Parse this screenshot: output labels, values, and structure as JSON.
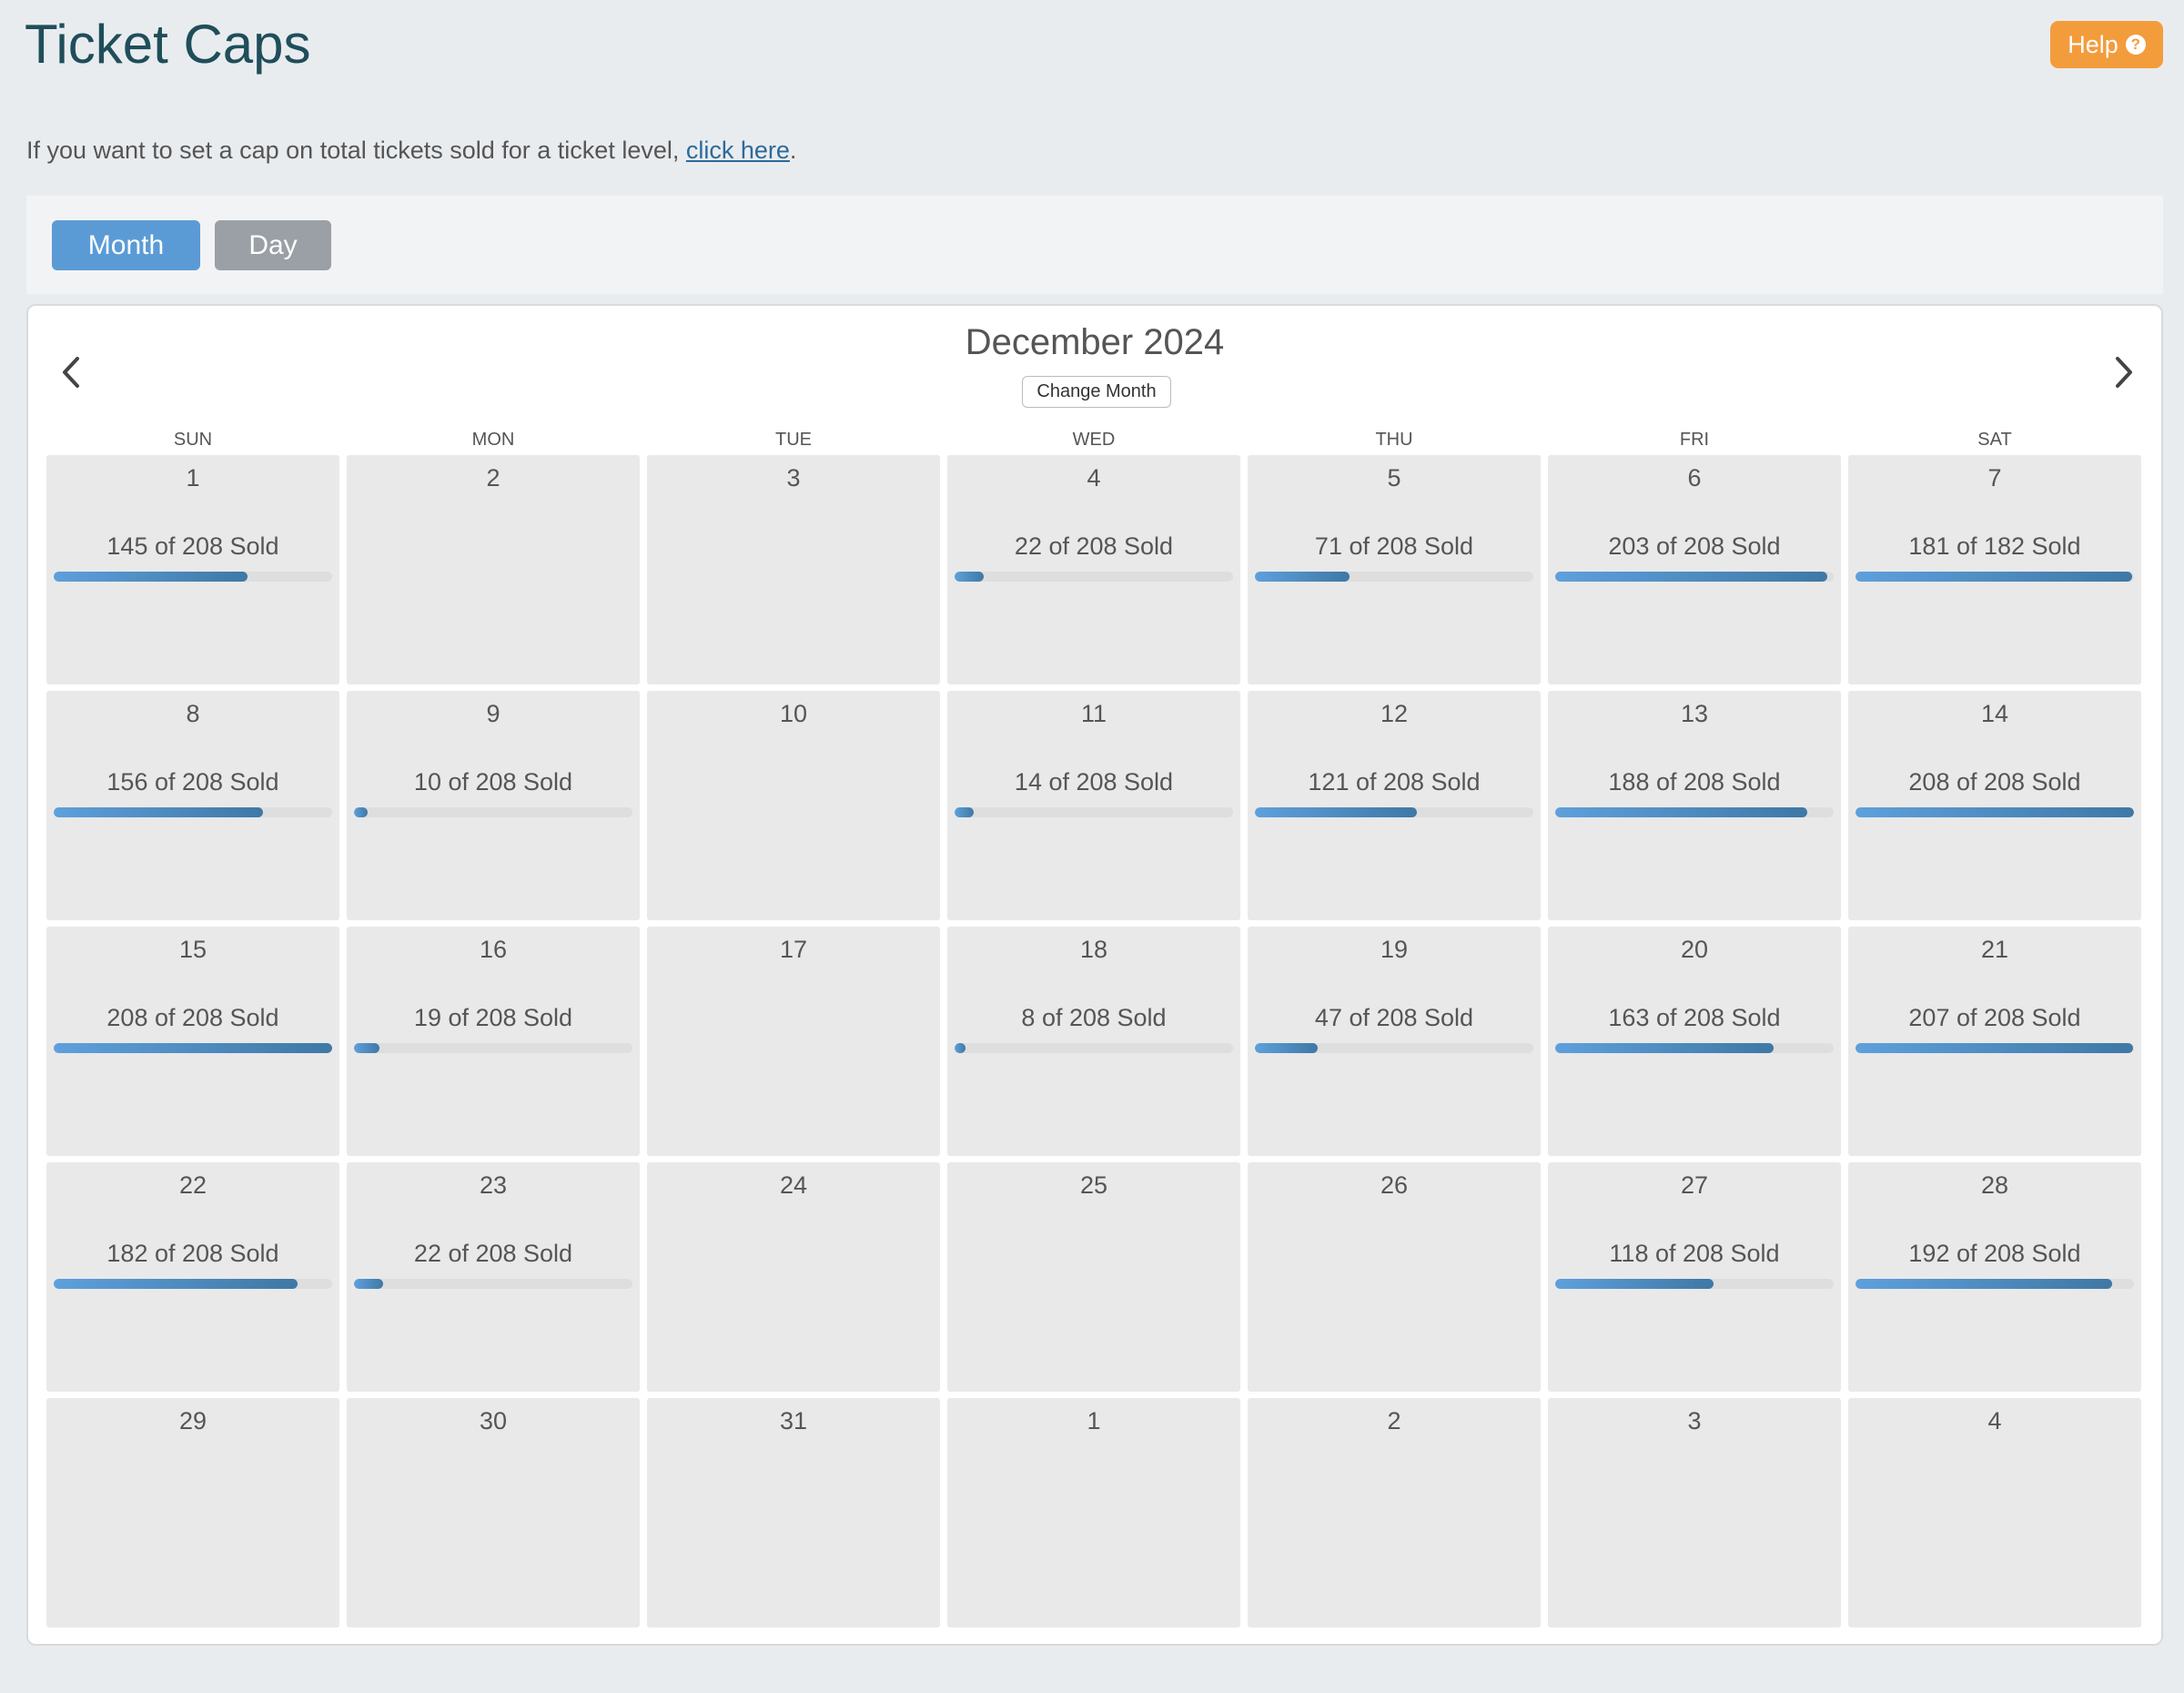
{
  "header": {
    "title": "Ticket Caps",
    "help_label": "Help",
    "help_icon": "question-circle-icon"
  },
  "intro": {
    "text": "If you want to set a cap on total tickets sold for a ticket level,",
    "link_label": "click here",
    "suffix": "."
  },
  "view_toggle": {
    "month_label": "Month",
    "day_label": "Day",
    "active": "Month",
    "colors": {
      "active": "#5b9bd5",
      "inactive": "#9aa0a6"
    }
  },
  "calendar": {
    "month_title": "December 2024",
    "change_month_label": "Change Month",
    "weekdays": [
      "SUN",
      "MON",
      "TUE",
      "WED",
      "THU",
      "FRI",
      "SAT"
    ],
    "days": [
      {
        "day": "1",
        "sold": 145,
        "cap": 208,
        "label": "145 of 208 Sold"
      },
      {
        "day": "2"
      },
      {
        "day": "3"
      },
      {
        "day": "4",
        "sold": 22,
        "cap": 208,
        "label": "22 of 208 Sold"
      },
      {
        "day": "5",
        "sold": 71,
        "cap": 208,
        "label": "71 of 208 Sold"
      },
      {
        "day": "6",
        "sold": 203,
        "cap": 208,
        "label": "203 of 208 Sold"
      },
      {
        "day": "7",
        "sold": 181,
        "cap": 182,
        "label": "181 of 182 Sold"
      },
      {
        "day": "8",
        "sold": 156,
        "cap": 208,
        "label": "156 of 208 Sold"
      },
      {
        "day": "9",
        "sold": 10,
        "cap": 208,
        "label": "10 of 208 Sold"
      },
      {
        "day": "10"
      },
      {
        "day": "11",
        "sold": 14,
        "cap": 208,
        "label": "14 of 208 Sold"
      },
      {
        "day": "12",
        "sold": 121,
        "cap": 208,
        "label": "121 of 208 Sold"
      },
      {
        "day": "13",
        "sold": 188,
        "cap": 208,
        "label": "188 of 208 Sold"
      },
      {
        "day": "14",
        "sold": 208,
        "cap": 208,
        "label": "208 of 208 Sold"
      },
      {
        "day": "15",
        "sold": 208,
        "cap": 208,
        "label": "208 of 208 Sold"
      },
      {
        "day": "16",
        "sold": 19,
        "cap": 208,
        "label": "19 of 208 Sold"
      },
      {
        "day": "17"
      },
      {
        "day": "18",
        "sold": 8,
        "cap": 208,
        "label": "8 of 208 Sold"
      },
      {
        "day": "19",
        "sold": 47,
        "cap": 208,
        "label": "47 of 208 Sold"
      },
      {
        "day": "20",
        "sold": 163,
        "cap": 208,
        "label": "163 of 208 Sold"
      },
      {
        "day": "21",
        "sold": 207,
        "cap": 208,
        "label": "207 of 208 Sold"
      },
      {
        "day": "22",
        "sold": 182,
        "cap": 208,
        "label": "182 of 208 Sold"
      },
      {
        "day": "23",
        "sold": 22,
        "cap": 208,
        "label": "22 of 208 Sold"
      },
      {
        "day": "24"
      },
      {
        "day": "25"
      },
      {
        "day": "26"
      },
      {
        "day": "27",
        "sold": 118,
        "cap": 208,
        "label": "118 of 208 Sold"
      },
      {
        "day": "28",
        "sold": 192,
        "cap": 208,
        "label": "192 of 208 Sold"
      },
      {
        "day": "29"
      },
      {
        "day": "30"
      },
      {
        "day": "31"
      },
      {
        "day": "1"
      },
      {
        "day": "2"
      },
      {
        "day": "3"
      },
      {
        "day": "4"
      }
    ]
  }
}
